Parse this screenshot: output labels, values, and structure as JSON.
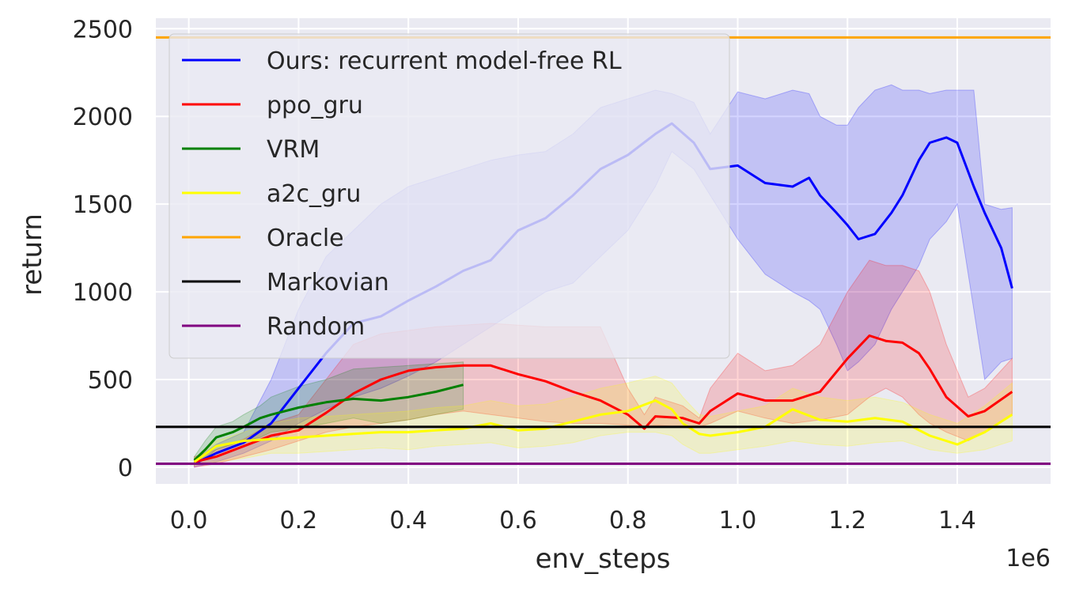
{
  "chart_data": {
    "type": "line",
    "xlabel": "env_steps",
    "ylabel": "return",
    "x_offset_label": "1e6",
    "xlim": [
      -0.06,
      1.57
    ],
    "ylim": [
      -95,
      2560
    ],
    "x_ticks": [
      0.0,
      0.2,
      0.4,
      0.6,
      0.8,
      1.0,
      1.2,
      1.4
    ],
    "x_tick_labels": [
      "0.0",
      "0.2",
      "0.4",
      "0.6",
      "0.8",
      "1.0",
      "1.2",
      "1.4"
    ],
    "y_ticks": [
      0,
      500,
      1000,
      1500,
      2000,
      2500
    ],
    "y_tick_labels": [
      "0",
      "500",
      "1000",
      "1500",
      "2000",
      "2500"
    ],
    "grid": true,
    "legend_position": "top-left",
    "background_color": "#eaeaf2",
    "series": [
      {
        "name": "Ours: recurrent model-free RL",
        "color": "#0000ff",
        "band_color": "#0000ff",
        "x": [
          0.01,
          0.05,
          0.1,
          0.15,
          0.2,
          0.25,
          0.3,
          0.35,
          0.4,
          0.45,
          0.5,
          0.55,
          0.6,
          0.65,
          0.7,
          0.75,
          0.8,
          0.85,
          0.88,
          0.92,
          0.95,
          1.0,
          1.05,
          1.1,
          1.13,
          1.15,
          1.18,
          1.2,
          1.22,
          1.25,
          1.28,
          1.3,
          1.33,
          1.35,
          1.38,
          1.4,
          1.43,
          1.45,
          1.48,
          1.5
        ],
        "mean": [
          20,
          80,
          140,
          250,
          450,
          650,
          820,
          860,
          950,
          1030,
          1120,
          1180,
          1350,
          1420,
          1550,
          1700,
          1780,
          1900,
          1960,
          1850,
          1700,
          1720,
          1620,
          1600,
          1650,
          1550,
          1450,
          1380,
          1300,
          1330,
          1450,
          1550,
          1750,
          1850,
          1880,
          1850,
          1600,
          1450,
          1250,
          1020
        ],
        "lower": [
          0,
          30,
          80,
          150,
          250,
          330,
          400,
          450,
          520,
          600,
          700,
          800,
          900,
          1000,
          1050,
          1200,
          1350,
          1600,
          1800,
          1700,
          1550,
          1300,
          1100,
          1000,
          950,
          900,
          700,
          550,
          600,
          700,
          900,
          1000,
          1150,
          1300,
          1400,
          1500,
          900,
          500,
          600,
          620
        ],
        "upper": [
          40,
          130,
          200,
          500,
          900,
          1200,
          1350,
          1500,
          1600,
          1650,
          1700,
          1750,
          1780,
          1800,
          1900,
          2050,
          2100,
          2150,
          2130,
          2080,
          1900,
          2140,
          2100,
          2150,
          2130,
          2000,
          1950,
          1950,
          2050,
          2150,
          2180,
          2150,
          2150,
          2130,
          2150,
          2150,
          2150,
          1500,
          1470,
          1480
        ]
      },
      {
        "name": "ppo_gru",
        "color": "#ff0000",
        "band_color": "#ff0000",
        "x": [
          0.01,
          0.05,
          0.1,
          0.15,
          0.2,
          0.25,
          0.3,
          0.35,
          0.4,
          0.45,
          0.5,
          0.55,
          0.6,
          0.65,
          0.7,
          0.75,
          0.8,
          0.83,
          0.85,
          0.9,
          0.93,
          0.95,
          1.0,
          1.05,
          1.1,
          1.15,
          1.2,
          1.24,
          1.27,
          1.3,
          1.33,
          1.35,
          1.38,
          1.42,
          1.45,
          1.5
        ],
        "mean": [
          30,
          60,
          120,
          180,
          210,
          310,
          420,
          500,
          550,
          570,
          580,
          580,
          530,
          490,
          430,
          380,
          300,
          220,
          290,
          280,
          250,
          320,
          420,
          380,
          380,
          430,
          620,
          750,
          720,
          710,
          650,
          560,
          400,
          290,
          320,
          430
        ],
        "lower": [
          0,
          20,
          60,
          100,
          150,
          200,
          230,
          250,
          270,
          300,
          320,
          300,
          280,
          260,
          250,
          250,
          240,
          230,
          240,
          230,
          230,
          250,
          320,
          280,
          250,
          270,
          300,
          400,
          450,
          400,
          300,
          250,
          200,
          150,
          200,
          300
        ],
        "upper": [
          60,
          100,
          160,
          250,
          300,
          500,
          700,
          760,
          780,
          800,
          810,
          820,
          810,
          800,
          800,
          800,
          450,
          300,
          400,
          350,
          280,
          450,
          650,
          550,
          580,
          700,
          1000,
          1180,
          1150,
          1150,
          1120,
          1000,
          700,
          400,
          450,
          620
        ]
      },
      {
        "name": "VRM",
        "color": "#008000",
        "band_color": "#008000",
        "x": [
          0.01,
          0.03,
          0.05,
          0.08,
          0.1,
          0.13,
          0.15,
          0.2,
          0.25,
          0.3,
          0.35,
          0.4,
          0.45,
          0.5
        ],
        "mean": [
          40,
          100,
          170,
          200,
          230,
          280,
          300,
          340,
          370,
          390,
          380,
          400,
          430,
          470
        ],
        "lower": [
          20,
          50,
          100,
          130,
          150,
          170,
          200,
          220,
          250,
          280,
          250,
          270,
          300,
          330
        ],
        "upper": [
          60,
          150,
          230,
          260,
          300,
          350,
          400,
          460,
          500,
          560,
          570,
          580,
          590,
          600
        ]
      },
      {
        "name": "a2c_gru",
        "color": "#ffff00",
        "band_color": "#ffff00",
        "x": [
          0.01,
          0.05,
          0.1,
          0.15,
          0.2,
          0.25,
          0.3,
          0.35,
          0.4,
          0.45,
          0.5,
          0.55,
          0.6,
          0.65,
          0.7,
          0.75,
          0.8,
          0.85,
          0.88,
          0.9,
          0.93,
          0.95,
          1.0,
          1.05,
          1.1,
          1.15,
          1.2,
          1.25,
          1.3,
          1.35,
          1.4,
          1.45,
          1.5
        ],
        "mean": [
          30,
          120,
          150,
          160,
          170,
          180,
          190,
          200,
          200,
          210,
          220,
          250,
          210,
          220,
          260,
          300,
          320,
          380,
          330,
          250,
          190,
          180,
          200,
          230,
          330,
          270,
          260,
          280,
          260,
          180,
          130,
          200,
          300
        ],
        "lower": [
          10,
          30,
          50,
          80,
          80,
          90,
          100,
          110,
          100,
          120,
          130,
          140,
          110,
          120,
          140,
          180,
          200,
          200,
          180,
          130,
          80,
          80,
          100,
          120,
          150,
          130,
          120,
          140,
          150,
          100,
          80,
          100,
          150
        ],
        "upper": [
          50,
          150,
          200,
          250,
          280,
          290,
          300,
          310,
          320,
          340,
          350,
          380,
          350,
          360,
          400,
          450,
          480,
          520,
          480,
          400,
          300,
          290,
          320,
          350,
          450,
          400,
          380,
          400,
          370,
          300,
          250,
          350,
          480
        ]
      }
    ],
    "hlines": [
      {
        "name": "Oracle",
        "y": 2450,
        "color": "#ffa500"
      },
      {
        "name": "Markovian",
        "y": 230,
        "color": "#000000"
      },
      {
        "name": "Random",
        "y": 20,
        "color": "#800080"
      }
    ],
    "legend_entries": [
      {
        "label": "Ours: recurrent model-free RL",
        "color": "#0000ff"
      },
      {
        "label": "ppo_gru",
        "color": "#ff0000"
      },
      {
        "label": "VRM",
        "color": "#008000"
      },
      {
        "label": "a2c_gru",
        "color": "#ffff00"
      },
      {
        "label": "Oracle",
        "color": "#ffa500"
      },
      {
        "label": "Markovian",
        "color": "#000000"
      },
      {
        "label": "Random",
        "color": "#800080"
      }
    ]
  }
}
